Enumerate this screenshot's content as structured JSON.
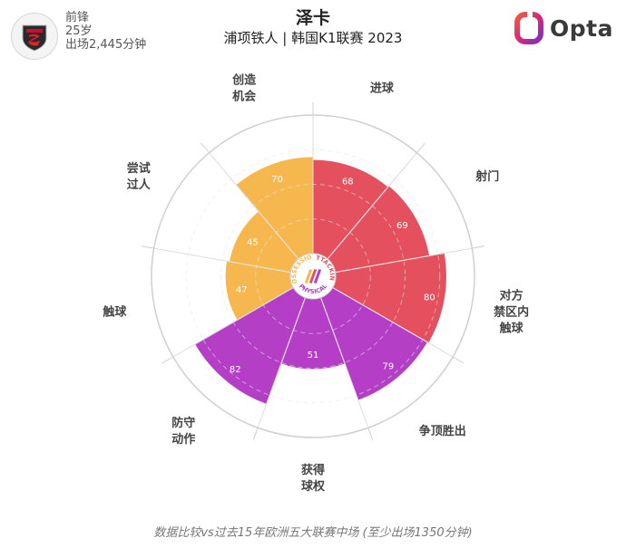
{
  "player": {
    "position": "前锋",
    "age": "25岁",
    "minutes": "出场2,445分钟"
  },
  "header": {
    "title": "泽卡",
    "subtitle": "浦项铁人 | 韩国K1联赛 2023",
    "brand": "Opta"
  },
  "center_labels": [
    "POSSESSION",
    "ATTACKING",
    "PHYSICAL"
  ],
  "footer": "数据比较vs过去15年欧洲五大联赛中场 (至少出场1350分钟)",
  "colors": {
    "attacking": "#e5505f",
    "possession": "#f6b84e",
    "physical": "#b53ec7",
    "ring": "#dddddd"
  },
  "icons": {
    "badge": "club-crest-icon",
    "logo": "opta-logo-icon"
  },
  "chart_data": {
    "type": "radar",
    "scale": [
      0,
      100
    ],
    "categories": [
      {
        "label": "进球",
        "value": 68,
        "group": "attacking"
      },
      {
        "label": "射门",
        "value": 69,
        "group": "attacking"
      },
      {
        "label": "对方禁区内触球",
        "value": 80,
        "group": "attacking"
      },
      {
        "label": "争顶胜出",
        "value": 79,
        "group": "physical"
      },
      {
        "label": "获得球权",
        "value": 51,
        "group": "physical"
      },
      {
        "label": "防守动作",
        "value": 82,
        "group": "physical"
      },
      {
        "label": "触球",
        "value": 47,
        "group": "possession"
      },
      {
        "label": "尝试过人",
        "value": 45,
        "group": "possession"
      },
      {
        "label": "创造机会",
        "value": 70,
        "group": "possession"
      }
    ]
  }
}
